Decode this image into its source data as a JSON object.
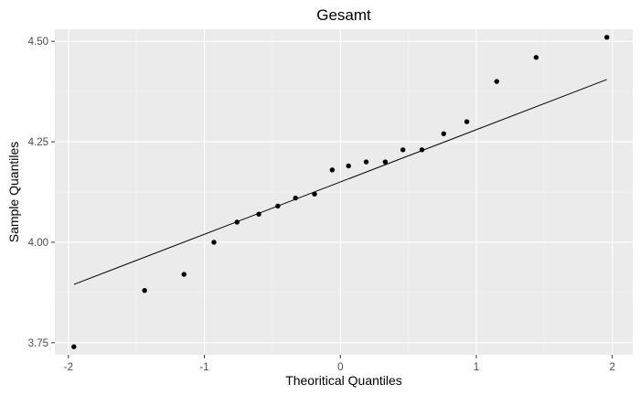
{
  "chart_data": {
    "type": "scatter",
    "title": "Gesamt",
    "xlabel": "Theoritical Quantiles",
    "ylabel": "Sample Quantiles",
    "xlim": [
      -2.1,
      2.15
    ],
    "ylim": [
      3.72,
      4.53
    ],
    "x_ticks": [
      -2,
      -1,
      0,
      1,
      2
    ],
    "x_tick_labels": [
      "-2",
      "-1",
      "0",
      "1",
      "2"
    ],
    "y_ticks": [
      3.75,
      4.0,
      4.25,
      4.5
    ],
    "y_tick_labels": [
      "3.75",
      "4.00",
      "4.25",
      "4.50"
    ],
    "grid": true,
    "points": [
      {
        "x": -1.96,
        "y": 3.74
      },
      {
        "x": -1.44,
        "y": 3.88
      },
      {
        "x": -1.15,
        "y": 3.92
      },
      {
        "x": -0.93,
        "y": 4.0
      },
      {
        "x": -0.76,
        "y": 4.05
      },
      {
        "x": -0.6,
        "y": 4.07
      },
      {
        "x": -0.46,
        "y": 4.09
      },
      {
        "x": -0.33,
        "y": 4.11
      },
      {
        "x": -0.19,
        "y": 4.12
      },
      {
        "x": -0.06,
        "y": 4.18
      },
      {
        "x": 0.06,
        "y": 4.19
      },
      {
        "x": 0.19,
        "y": 4.2
      },
      {
        "x": 0.33,
        "y": 4.2
      },
      {
        "x": 0.46,
        "y": 4.23
      },
      {
        "x": 0.6,
        "y": 4.23
      },
      {
        "x": 0.76,
        "y": 4.27
      },
      {
        "x": 0.93,
        "y": 4.3
      },
      {
        "x": 1.15,
        "y": 4.4
      },
      {
        "x": 1.44,
        "y": 4.46
      },
      {
        "x": 1.96,
        "y": 4.51
      }
    ],
    "reference_line": {
      "x": [
        -1.96,
        1.96
      ],
      "y": [
        3.895,
        4.405
      ]
    },
    "colors": {
      "panel": "#ebebeb",
      "grid_major": "#ffffff",
      "point": "#000000",
      "line": "#000000"
    }
  }
}
